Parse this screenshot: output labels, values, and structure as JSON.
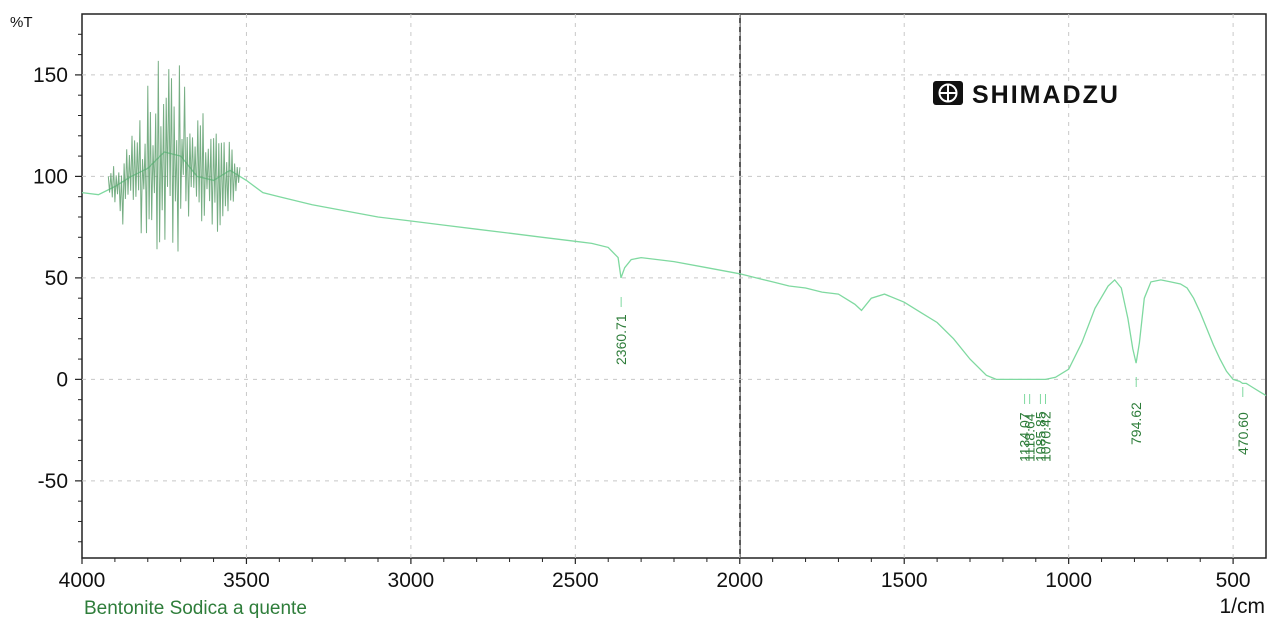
{
  "chart_data": {
    "type": "line",
    "instrument_logo": "SHIMADZU",
    "ylabel": "%T",
    "xlabel": "1/cm",
    "sample_name": "Bentonite Sodica a quente",
    "xlim": [
      4000,
      400
    ],
    "ylim": [
      -88,
      180
    ],
    "x_ticks": [
      4000,
      3500,
      3000,
      2500,
      2000,
      1500,
      1000,
      500
    ],
    "y_ticks": [
      150,
      100,
      50,
      0,
      -50
    ],
    "grid": true,
    "series": [
      {
        "color": "#7fd9a0",
        "x": [
          4000,
          3950,
          3900,
          3850,
          3800,
          3750,
          3700,
          3650,
          3600,
          3550,
          3500,
          3450,
          3400,
          3300,
          3200,
          3100,
          3000,
          2900,
          2800,
          2700,
          2600,
          2500,
          2450,
          2400,
          2370,
          2361,
          2350,
          2330,
          2300,
          2250,
          2200,
          2100,
          2000,
          1950,
          1900,
          1850,
          1800,
          1750,
          1700,
          1650,
          1630,
          1600,
          1560,
          1500,
          1450,
          1400,
          1350,
          1300,
          1250,
          1220,
          1200,
          1134,
          1119,
          1086,
          1070,
          1040,
          1000,
          960,
          920,
          880,
          860,
          840,
          820,
          805,
          795,
          785,
          770,
          750,
          720,
          690,
          660,
          640,
          620,
          600,
          580,
          560,
          540,
          520,
          500,
          480,
          471,
          460,
          450,
          440,
          420,
          400
        ],
        "y": [
          92,
          91,
          95,
          100,
          104,
          112,
          110,
          100,
          98,
          103,
          98,
          92,
          90,
          86,
          83,
          80,
          78,
          76,
          74,
          72,
          70,
          68,
          67,
          65,
          60,
          50,
          55,
          59,
          60,
          59,
          58,
          55,
          52,
          50,
          48,
          46,
          45,
          43,
          42,
          37,
          34,
          40,
          42,
          38,
          33,
          28,
          20,
          10,
          2,
          0,
          0,
          0,
          0,
          0,
          0,
          1,
          5,
          18,
          35,
          46,
          49,
          45,
          30,
          15,
          8,
          18,
          40,
          48,
          49,
          48,
          47,
          45,
          40,
          33,
          25,
          17,
          10,
          4,
          0,
          -1,
          -2,
          -2,
          -3,
          -4,
          -6,
          -8
        ]
      }
    ],
    "noise_region": {
      "x_from": 3920,
      "x_to": 3520,
      "amplitude": 45
    },
    "peak_labels": [
      "2360.71",
      "1134.07",
      "1118.64",
      "1085.85",
      "1070.42",
      "794.62",
      "470.60"
    ],
    "peak_positions": [
      2360.71,
      1134.07,
      1118.64,
      1085.85,
      1070.42,
      794.62,
      470.6
    ]
  }
}
